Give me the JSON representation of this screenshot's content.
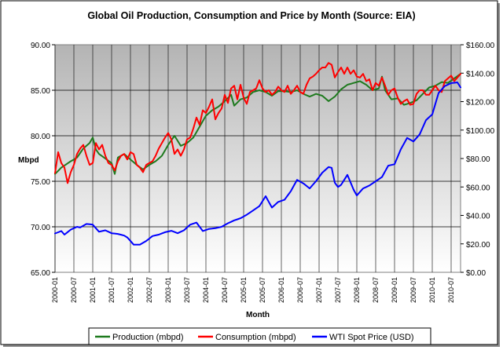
{
  "chart_data": {
    "type": "line",
    "title": "Global Oil Production, Consumption and Price by Month (Source: EIA)",
    "xlabel": "Month",
    "ylabel": "Mbpd",
    "y_left": {
      "min": 65,
      "max": 90,
      "step": 5,
      "ticks": [
        "65.00",
        "70.00",
        "75.00",
        "80.00",
        "85.00",
        "90.00"
      ]
    },
    "y_right": {
      "min": 0,
      "max": 160,
      "step": 20,
      "ticks": [
        "$0.00",
        "$20.00",
        "$40.00",
        "$60.00",
        "$80.00",
        "$100.00",
        "$120.00",
        "$140.00",
        "$160.00"
      ]
    },
    "x_tick_labels": [
      "2000-01",
      "2000-07",
      "2001-01",
      "2001-07",
      "2002-01",
      "2002-07",
      "2003-01",
      "2003-07",
      "2004-01",
      "2004-07",
      "2005-01",
      "2005-07",
      "2006-01",
      "2006-07",
      "2007-01",
      "2007-07",
      "2008-01",
      "2008-07",
      "2009-01",
      "2009-07",
      "2010-01",
      "2010-07"
    ],
    "x_start": "2000-01",
    "n_months": 130,
    "grid": true,
    "legend_position": "bottom",
    "series": [
      {
        "name": "Production (mbpd)",
        "axis": "left",
        "color": "#1e7a1e",
        "anchors": [
          [
            0,
            75.8
          ],
          [
            2,
            76.5
          ],
          [
            5,
            77.2
          ],
          [
            7,
            77.6
          ],
          [
            9,
            78.6
          ],
          [
            11,
            79.2
          ],
          [
            12,
            79.8
          ],
          [
            13,
            78.5
          ],
          [
            14,
            78.0
          ],
          [
            16,
            77.5
          ],
          [
            18,
            77.0
          ],
          [
            19,
            75.8
          ],
          [
            20,
            77.6
          ],
          [
            22,
            78.0
          ],
          [
            24,
            77.4
          ],
          [
            26,
            76.8
          ],
          [
            28,
            76.3
          ],
          [
            30,
            76.8
          ],
          [
            32,
            77.2
          ],
          [
            34,
            77.8
          ],
          [
            36,
            79.0
          ],
          [
            38,
            80.0
          ],
          [
            40,
            78.9
          ],
          [
            42,
            79.2
          ],
          [
            44,
            79.8
          ],
          [
            46,
            81.0
          ],
          [
            48,
            82.2
          ],
          [
            50,
            82.8
          ],
          [
            52,
            83.2
          ],
          [
            54,
            83.8
          ],
          [
            56,
            84.5
          ],
          [
            57,
            83.3
          ],
          [
            59,
            84.0
          ],
          [
            61,
            84.2
          ],
          [
            63,
            84.8
          ],
          [
            65,
            85.0
          ],
          [
            67,
            84.8
          ],
          [
            69,
            84.4
          ],
          [
            71,
            84.9
          ],
          [
            73,
            84.9
          ],
          [
            75,
            84.8
          ],
          [
            77,
            85.0
          ],
          [
            79,
            84.6
          ],
          [
            81,
            84.3
          ],
          [
            83,
            84.6
          ],
          [
            85,
            84.4
          ],
          [
            87,
            83.8
          ],
          [
            89,
            84.3
          ],
          [
            91,
            85.1
          ],
          [
            93,
            85.6
          ],
          [
            95,
            85.8
          ],
          [
            97,
            86.0
          ],
          [
            99,
            85.6
          ],
          [
            101,
            85.0
          ],
          [
            103,
            85.2
          ],
          [
            104,
            86.5
          ],
          [
            105,
            85.0
          ],
          [
            107,
            84.0
          ],
          [
            109,
            84.1
          ],
          [
            111,
            83.4
          ],
          [
            113,
            83.6
          ],
          [
            115,
            83.9
          ],
          [
            117,
            84.6
          ],
          [
            119,
            85.3
          ],
          [
            121,
            85.5
          ],
          [
            123,
            85.9
          ],
          [
            125,
            85.8
          ],
          [
            127,
            86.3
          ],
          [
            129,
            86.8
          ]
        ]
      },
      {
        "name": "Consumption (mbpd)",
        "axis": "left",
        "color": "#ff0000",
        "anchors": [
          [
            0,
            75.9
          ],
          [
            1,
            78.2
          ],
          [
            2,
            77.0
          ],
          [
            3,
            76.5
          ],
          [
            4,
            74.8
          ],
          [
            5,
            76.0
          ],
          [
            6,
            76.8
          ],
          [
            7,
            78.0
          ],
          [
            8,
            78.6
          ],
          [
            9,
            79.0
          ],
          [
            10,
            77.8
          ],
          [
            11,
            76.8
          ],
          [
            12,
            77.0
          ],
          [
            13,
            79.2
          ],
          [
            14,
            78.5
          ],
          [
            15,
            79.0
          ],
          [
            16,
            77.8
          ],
          [
            17,
            77.0
          ],
          [
            18,
            76.8
          ],
          [
            19,
            76.2
          ],
          [
            20,
            77.2
          ],
          [
            21,
            77.8
          ],
          [
            22,
            78.0
          ],
          [
            23,
            77.4
          ],
          [
            24,
            78.2
          ],
          [
            25,
            78.0
          ],
          [
            26,
            76.8
          ],
          [
            27,
            76.5
          ],
          [
            28,
            76.0
          ],
          [
            29,
            76.8
          ],
          [
            30,
            77.0
          ],
          [
            31,
            77.2
          ],
          [
            32,
            77.8
          ],
          [
            33,
            78.6
          ],
          [
            34,
            79.2
          ],
          [
            35,
            79.8
          ],
          [
            36,
            80.3
          ],
          [
            37,
            79.6
          ],
          [
            38,
            78.0
          ],
          [
            39,
            78.5
          ],
          [
            40,
            77.8
          ],
          [
            41,
            78.5
          ],
          [
            42,
            79.6
          ],
          [
            43,
            79.8
          ],
          [
            44,
            80.8
          ],
          [
            45,
            82.0
          ],
          [
            46,
            81.2
          ],
          [
            47,
            82.8
          ],
          [
            48,
            82.5
          ],
          [
            49,
            83.2
          ],
          [
            50,
            84.0
          ],
          [
            51,
            81.8
          ],
          [
            52,
            82.5
          ],
          [
            53,
            83.0
          ],
          [
            54,
            84.5
          ],
          [
            55,
            83.6
          ],
          [
            56,
            85.2
          ],
          [
            57,
            85.5
          ],
          [
            58,
            84.0
          ],
          [
            59,
            85.6
          ],
          [
            60,
            84.2
          ],
          [
            61,
            83.5
          ],
          [
            62,
            84.8
          ],
          [
            63,
            85.0
          ],
          [
            64,
            85.2
          ],
          [
            65,
            86.1
          ],
          [
            66,
            85.2
          ],
          [
            67,
            84.8
          ],
          [
            68,
            85.0
          ],
          [
            69,
            84.5
          ],
          [
            70,
            84.8
          ],
          [
            71,
            85.4
          ],
          [
            72,
            85.0
          ],
          [
            73,
            84.8
          ],
          [
            74,
            85.5
          ],
          [
            75,
            84.6
          ],
          [
            76,
            85.0
          ],
          [
            77,
            85.5
          ],
          [
            78,
            84.8
          ],
          [
            79,
            84.6
          ],
          [
            80,
            85.6
          ],
          [
            81,
            86.3
          ],
          [
            82,
            86.5
          ],
          [
            83,
            86.8
          ],
          [
            84,
            87.2
          ],
          [
            85,
            87.5
          ],
          [
            86,
            87.5
          ],
          [
            87,
            88.0
          ],
          [
            88,
            87.8
          ],
          [
            89,
            86.4
          ],
          [
            90,
            87.0
          ],
          [
            91,
            87.5
          ],
          [
            92,
            86.8
          ],
          [
            93,
            87.5
          ],
          [
            94,
            86.8
          ],
          [
            95,
            87.2
          ],
          [
            96,
            86.5
          ],
          [
            97,
            86.4
          ],
          [
            98,
            86.8
          ],
          [
            99,
            86.0
          ],
          [
            100,
            86.2
          ],
          [
            101,
            85.0
          ],
          [
            102,
            85.8
          ],
          [
            103,
            85.5
          ],
          [
            104,
            86.4
          ],
          [
            105,
            85.5
          ],
          [
            106,
            84.5
          ],
          [
            107,
            85.0
          ],
          [
            108,
            85.2
          ],
          [
            109,
            84.2
          ],
          [
            110,
            83.5
          ],
          [
            111,
            83.8
          ],
          [
            112,
            84.0
          ],
          [
            113,
            83.4
          ],
          [
            114,
            83.5
          ],
          [
            115,
            84.6
          ],
          [
            116,
            85.0
          ],
          [
            117,
            85.0
          ],
          [
            118,
            84.5
          ],
          [
            119,
            84.5
          ],
          [
            120,
            85.0
          ],
          [
            121,
            85.5
          ],
          [
            122,
            85.0
          ],
          [
            123,
            84.8
          ],
          [
            124,
            86.0
          ],
          [
            125,
            86.3
          ],
          [
            126,
            86.6
          ],
          [
            127,
            86.0
          ],
          [
            128,
            86.4
          ],
          [
            129,
            86.8
          ]
        ]
      },
      {
        "name": "WTI Spot Price (USD)",
        "axis": "right",
        "color": "#0000ff",
        "anchors": [
          [
            0,
            27.3
          ],
          [
            2,
            29.0
          ],
          [
            3,
            26.5
          ],
          [
            5,
            30.0
          ],
          [
            7,
            32.0
          ],
          [
            8,
            31.5
          ],
          [
            10,
            34.0
          ],
          [
            12,
            33.5
          ],
          [
            14,
            28.5
          ],
          [
            16,
            29.5
          ],
          [
            18,
            27.5
          ],
          [
            20,
            27.0
          ],
          [
            22,
            25.8
          ],
          [
            23,
            24.5
          ],
          [
            25,
            19.5
          ],
          [
            27,
            19.5
          ],
          [
            29,
            22.0
          ],
          [
            31,
            25.5
          ],
          [
            33,
            26.5
          ],
          [
            35,
            28.2
          ],
          [
            37,
            29.2
          ],
          [
            39,
            27.5
          ],
          [
            41,
            29.5
          ],
          [
            43,
            33.5
          ],
          [
            45,
            35.0
          ],
          [
            47,
            29.0
          ],
          [
            49,
            30.5
          ],
          [
            51,
            31.0
          ],
          [
            53,
            32.0
          ],
          [
            55,
            34.5
          ],
          [
            57,
            36.5
          ],
          [
            59,
            38.0
          ],
          [
            61,
            40.5
          ],
          [
            63,
            43.5
          ],
          [
            65,
            46.5
          ],
          [
            67,
            53.5
          ],
          [
            69,
            45.5
          ],
          [
            71,
            49.5
          ],
          [
            73,
            51.0
          ],
          [
            75,
            57.0
          ],
          [
            77,
            65.0
          ],
          [
            79,
            62.5
          ],
          [
            81,
            59.0
          ],
          [
            83,
            64.0
          ],
          [
            85,
            70.0
          ],
          [
            87,
            74.0
          ],
          [
            88,
            73.5
          ],
          [
            89,
            63.0
          ],
          [
            90,
            60.0
          ],
          [
            91,
            61.5
          ],
          [
            93,
            68.5
          ],
          [
            95,
            58.0
          ],
          [
            96,
            54.0
          ],
          [
            98,
            59.0
          ],
          [
            100,
            61.0
          ],
          [
            102,
            64.0
          ],
          [
            104,
            67.0
          ],
          [
            106,
            75.0
          ],
          [
            108,
            76.0
          ],
          [
            110,
            86.5
          ],
          [
            112,
            94.5
          ],
          [
            114,
            92.0
          ],
          [
            116,
            97.0
          ],
          [
            118,
            107.0
          ],
          [
            120,
            111.0
          ],
          [
            122,
            126.0
          ],
          [
            124,
            131.0
          ],
          [
            126,
            133.0
          ],
          [
            128,
            133.5
          ],
          [
            129,
            130.0
          ]
        ]
      }
    ]
  },
  "legend": {
    "items": [
      "Production (mbpd)",
      "Consumption (mbpd)",
      "WTI Spot Price (USD)"
    ]
  }
}
